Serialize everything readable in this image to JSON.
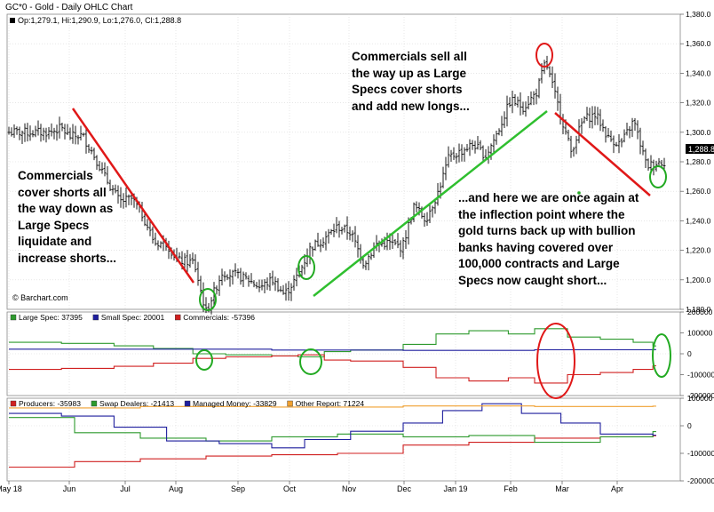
{
  "title": "GC*0 - Gold - Daily OHLC Chart",
  "ohlc_label": "Op:1,279.1, Hi:1,290.9, Lo:1,276.0, Cl:1,288.8",
  "last_price_label": "1,288.8",
  "watermark": "© Barchart.com",
  "annotations": {
    "commercials_cover": "Commercials\ncover shorts all\nthe way down as\nLarge Specs\nliquidate and\nincrease shorts...",
    "commercials_sell": "Commercials sell all\nthe way up as Large\nSpecs cover shorts\nand add new longs...",
    "inflection": "...and here we are once again at\nthe inflection point where the\ngold turns back up with bullion\nbanks having covered over\n100,000 contracts and Large\nSpecs now caught short..."
  },
  "colors": {
    "large_spec": "#2e9a2e",
    "small_spec": "#1f1f9e",
    "commercials": "#d02020",
    "producers": "#d02020",
    "swap_dealers": "#2e9a2e",
    "managed_money": "#1f1f9e",
    "other_report": "#f0a030",
    "trend_down": "#e01818",
    "trend_up": "#2fbf2f",
    "circle_green": "#22aa22"
  },
  "chart_data": [
    {
      "type": "ohlc",
      "title": "GC*0 - Gold - Daily OHLC Chart",
      "x_ticks": [
        "May 18",
        "Jun",
        "Jul",
        "Aug",
        "Sep",
        "Oct",
        "Nov",
        "Dec",
        "Jan 19",
        "Feb",
        "Mar",
        "Apr"
      ],
      "ylim": [
        1180,
        1380
      ],
      "y_ticks": [
        "1,380.0",
        "1,360.0",
        "1,340.0",
        "1,320.0",
        "1,300.0",
        "1,280.0",
        "1,260.0",
        "1,240.0",
        "1,220.0",
        "1,200.0",
        "1,180.0"
      ],
      "close_path": [
        [
          "May 18",
          1300
        ],
        [
          "May 22",
          1300
        ],
        [
          "May 28",
          1303
        ],
        [
          "Jun 1",
          1297
        ],
        [
          "Jun 8",
          1298
        ],
        [
          "Jun 14",
          1285
        ],
        [
          "Jun 20",
          1270
        ],
        [
          "Jun 28",
          1253
        ],
        [
          "Jul 5",
          1255
        ],
        [
          "Jul 12",
          1243
        ],
        [
          "Jul 19",
          1225
        ],
        [
          "Jul 26",
          1225
        ],
        [
          "Aug 2",
          1213
        ],
        [
          "Aug 10",
          1212
        ],
        [
          "Aug 16",
          1178
        ],
        [
          "Aug 24",
          1205
        ],
        [
          "Aug 31",
          1203
        ],
        [
          "Sep 7",
          1200
        ],
        [
          "Sep 14",
          1195
        ],
        [
          "Sep 21",
          1200
        ],
        [
          "Sep 28",
          1190
        ],
        [
          "Oct 5",
          1202
        ],
        [
          "Oct 12",
          1222
        ],
        [
          "Oct 19",
          1228
        ],
        [
          "Oct 26",
          1236
        ],
        [
          "Nov 2",
          1232
        ],
        [
          "Nov 9",
          1211
        ],
        [
          "Nov 16",
          1224
        ],
        [
          "Nov 23",
          1225
        ],
        [
          "Nov 30",
          1222
        ],
        [
          "Dec 7",
          1250
        ],
        [
          "Dec 14",
          1241
        ],
        [
          "Dec 21",
          1258
        ],
        [
          "Dec 28",
          1283
        ],
        [
          "Jan 4",
          1287
        ],
        [
          "Jan 11",
          1292
        ],
        [
          "Jan 18",
          1284
        ],
        [
          "Jan 25",
          1301
        ],
        [
          "Feb 1",
          1322
        ],
        [
          "Feb 8",
          1317
        ],
        [
          "Feb 15",
          1327
        ],
        [
          "Feb 20",
          1348
        ],
        [
          "Feb 27",
          1317
        ],
        [
          "Mar 6",
          1287
        ],
        [
          "Mar 13",
          1309
        ],
        [
          "Mar 20",
          1312
        ],
        [
          "Mar 27",
          1296
        ],
        [
          "Apr 3",
          1292
        ],
        [
          "Apr 10",
          1308
        ],
        [
          "Apr 17",
          1277
        ],
        [
          "Apr 24",
          1280
        ]
      ],
      "last_close": 1288.8,
      "annotations": [
        "Commercials cover shorts all the way down as Large Specs liquidate and increase shorts...",
        "Commercials sell all the way up as Large Specs cover shorts and add new longs...",
        "...and here we are once again at the inflection point where the gold turns back up with bullion banks having covered over 100,000 contracts and Large Specs now caught short..."
      ]
    },
    {
      "type": "line",
      "ylim": [
        -200000,
        200000
      ],
      "y_ticks": [
        "200000",
        "100000",
        "0",
        "-100000",
        "-200000"
      ],
      "legend_placement": "top-left",
      "series": [
        {
          "name": "Large Spec: 37395",
          "color_key": "large_spec",
          "values": [
            [
              0,
              55000
            ],
            [
              0.08,
              50000
            ],
            [
              0.16,
              38000
            ],
            [
              0.22,
              25000
            ],
            [
              0.28,
              0
            ],
            [
              0.33,
              -5000
            ],
            [
              0.4,
              -10000
            ],
            [
              0.44,
              -15000
            ],
            [
              0.48,
              10000
            ],
            [
              0.52,
              18000
            ],
            [
              0.6,
              45000
            ],
            [
              0.65,
              95000
            ],
            [
              0.7,
              110000
            ],
            [
              0.76,
              95000
            ],
            [
              0.8,
              120000
            ],
            [
              0.85,
              80000
            ],
            [
              0.9,
              70000
            ],
            [
              0.95,
              55000
            ],
            [
              0.98,
              37395
            ]
          ]
        },
        {
          "name": "Small Spec: 20001",
          "color_key": "small_spec",
          "values": [
            [
              0,
              22000
            ],
            [
              0.2,
              22000
            ],
            [
              0.4,
              18000
            ],
            [
              0.6,
              16000
            ],
            [
              0.8,
              19000
            ],
            [
              0.98,
              20001
            ]
          ]
        },
        {
          "name": "Commercials: -57396",
          "color_key": "commercials",
          "values": [
            [
              0,
              -75000
            ],
            [
              0.08,
              -70000
            ],
            [
              0.16,
              -60000
            ],
            [
              0.22,
              -45000
            ],
            [
              0.28,
              -22000
            ],
            [
              0.33,
              -15000
            ],
            [
              0.4,
              -10000
            ],
            [
              0.44,
              -5000
            ],
            [
              0.48,
              -30000
            ],
            [
              0.52,
              -35000
            ],
            [
              0.6,
              -65000
            ],
            [
              0.65,
              -115000
            ],
            [
              0.7,
              -130000
            ],
            [
              0.76,
              -115000
            ],
            [
              0.8,
              -140000
            ],
            [
              0.85,
              -100000
            ],
            [
              0.9,
              -90000
            ],
            [
              0.95,
              -75000
            ],
            [
              0.98,
              -57396
            ]
          ]
        }
      ]
    },
    {
      "type": "line",
      "ylim": [
        -200000,
        100000
      ],
      "y_ticks": [
        "100000",
        "0",
        "-100000",
        "-200000"
      ],
      "legend_placement": "top-left",
      "series": [
        {
          "name": "Producers: -35983",
          "color_key": "producers",
          "values": [
            [
              0,
              -150000
            ],
            [
              0.1,
              -130000
            ],
            [
              0.2,
              -120000
            ],
            [
              0.3,
              -110000
            ],
            [
              0.4,
              -105000
            ],
            [
              0.5,
              -100000
            ],
            [
              0.6,
              -70000
            ],
            [
              0.7,
              -60000
            ],
            [
              0.8,
              -45000
            ],
            [
              0.9,
              -40000
            ],
            [
              0.98,
              -35983
            ]
          ]
        },
        {
          "name": "Swap Dealers: -21413",
          "color_key": "swap_dealers",
          "values": [
            [
              0,
              30000
            ],
            [
              0.1,
              -25000
            ],
            [
              0.2,
              -45000
            ],
            [
              0.3,
              -55000
            ],
            [
              0.4,
              -40000
            ],
            [
              0.5,
              -30000
            ],
            [
              0.6,
              -40000
            ],
            [
              0.7,
              -35000
            ],
            [
              0.8,
              -60000
            ],
            [
              0.9,
              -40000
            ],
            [
              0.98,
              -21413
            ]
          ]
        },
        {
          "name": "Managed Money: -33829",
          "color_key": "managed_money",
          "values": [
            [
              0,
              45000
            ],
            [
              0.08,
              35000
            ],
            [
              0.16,
              -5000
            ],
            [
              0.24,
              -55000
            ],
            [
              0.32,
              -65000
            ],
            [
              0.4,
              -80000
            ],
            [
              0.45,
              -50000
            ],
            [
              0.52,
              -20000
            ],
            [
              0.6,
              10000
            ],
            [
              0.66,
              55000
            ],
            [
              0.72,
              80000
            ],
            [
              0.78,
              45000
            ],
            [
              0.84,
              10000
            ],
            [
              0.9,
              -30000
            ],
            [
              0.98,
              -33829
            ]
          ]
        },
        {
          "name": "Other Report: 71224",
          "color_key": "other_report",
          "values": [
            [
              0,
              65000
            ],
            [
              0.2,
              70000
            ],
            [
              0.4,
              68000
            ],
            [
              0.6,
              72000
            ],
            [
              0.8,
              70000
            ],
            [
              0.98,
              71224
            ]
          ]
        }
      ]
    }
  ]
}
